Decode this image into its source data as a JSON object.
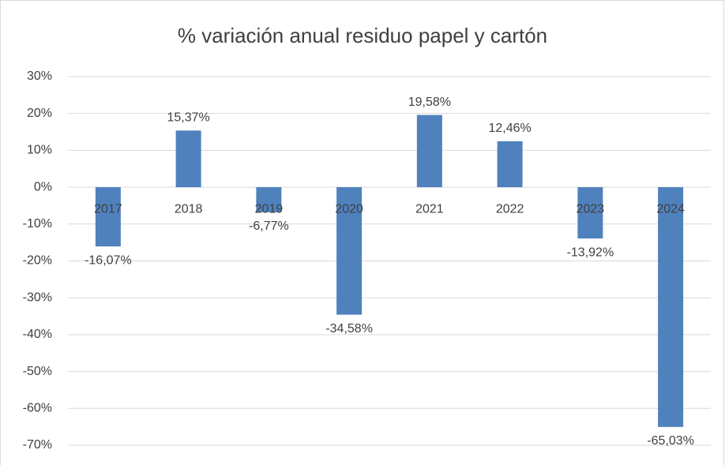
{
  "chart_data": {
    "type": "bar",
    "title": "% variación anual residuo papel y cartón",
    "categories": [
      "2017",
      "2018",
      "2019",
      "2020",
      "2021",
      "2022",
      "2023",
      "2024"
    ],
    "values": [
      -16.07,
      15.37,
      -6.77,
      -34.58,
      19.58,
      12.46,
      -13.92,
      -65.03
    ],
    "value_labels": [
      "-16,07%",
      "15,37%",
      "-6,77%",
      "-34,58%",
      "19,58%",
      "12,46%",
      "-13,92%",
      "-65,03%"
    ],
    "color": "#4f81bd",
    "ylim": [
      -70,
      30
    ],
    "yticks": [
      {
        "value": 30,
        "label": "30%"
      },
      {
        "value": 20,
        "label": "20%"
      },
      {
        "value": 10,
        "label": "10%"
      },
      {
        "value": 0,
        "label": "0%"
      },
      {
        "value": -10,
        "label": "-10%"
      },
      {
        "value": -20,
        "label": "-20%"
      },
      {
        "value": -30,
        "label": "-30%"
      },
      {
        "value": -40,
        "label": "-40%"
      },
      {
        "value": -50,
        "label": "-50%"
      },
      {
        "value": -60,
        "label": "-60%"
      },
      {
        "value": -70,
        "label": "-70%"
      }
    ],
    "grid": true
  }
}
